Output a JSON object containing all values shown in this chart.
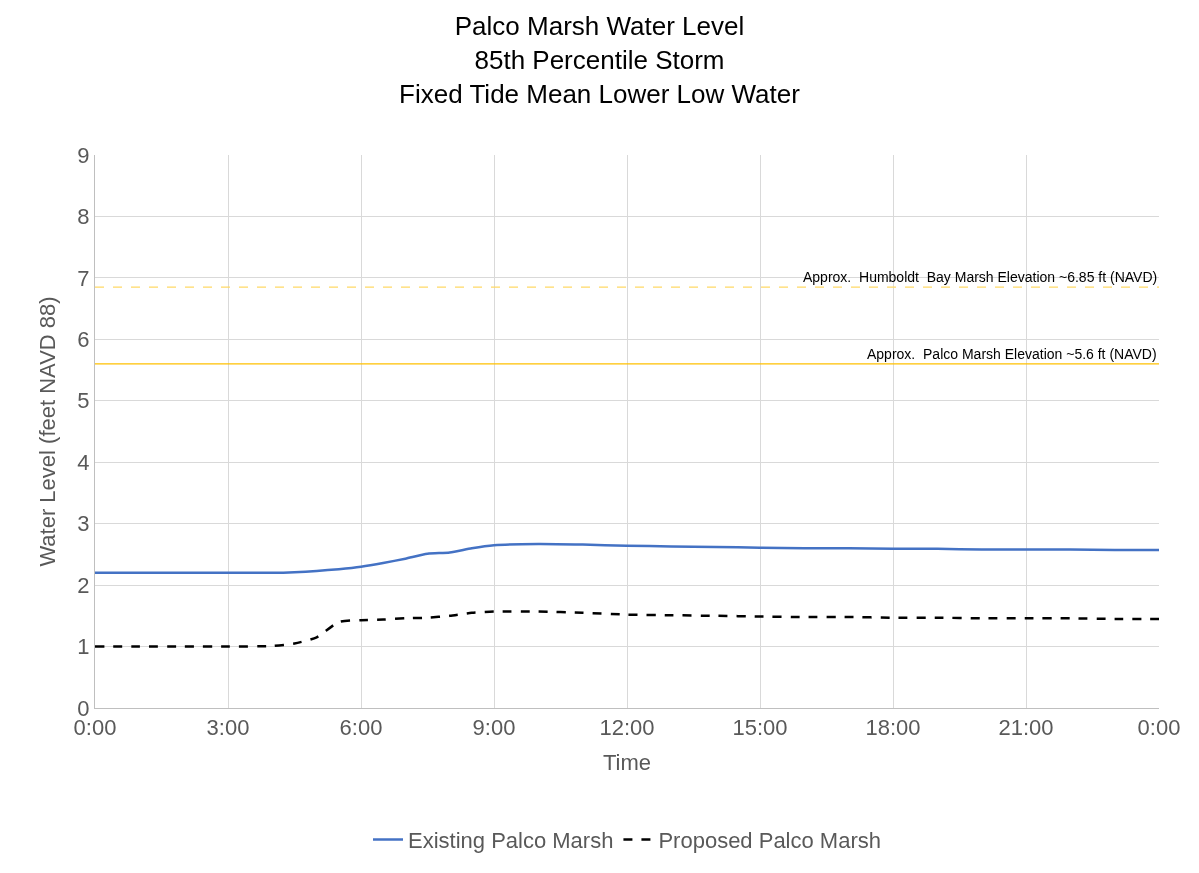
{
  "chart_data": {
    "type": "line",
    "title": "Palco Marsh Water Level\n85th Percentile Storm\nFixed Tide Mean Lower Low Water",
    "xlabel": "Time",
    "ylabel": "Water Level (feet NAVD 88)",
    "x": [
      0,
      1,
      2,
      3,
      4,
      4.5,
      5,
      5.5,
      6,
      6.5,
      7,
      7.5,
      8,
      8.5,
      9,
      10,
      11,
      12,
      13,
      14,
      15,
      16,
      17,
      18,
      19,
      20,
      21,
      22,
      23,
      24
    ],
    "series": [
      {
        "name": "Existing Palco Marsh",
        "color": "#4472c4",
        "line_style": "solid",
        "values": [
          2.2,
          2.2,
          2.2,
          2.2,
          2.2,
          2.21,
          2.23,
          2.26,
          2.3,
          2.36,
          2.43,
          2.51,
          2.53,
          2.6,
          2.65,
          2.67,
          2.66,
          2.64,
          2.63,
          2.62,
          2.61,
          2.6,
          2.6,
          2.59,
          2.59,
          2.58,
          2.58,
          2.58,
          2.57,
          2.57
        ]
      },
      {
        "name": "Proposed Palco Marsh",
        "color": "#000000",
        "line_style": "dashed",
        "values": [
          1.0,
          1.0,
          1.0,
          1.0,
          1.01,
          1.05,
          1.15,
          1.4,
          1.43,
          1.44,
          1.46,
          1.47,
          1.5,
          1.55,
          1.57,
          1.57,
          1.55,
          1.52,
          1.51,
          1.5,
          1.49,
          1.48,
          1.48,
          1.47,
          1.47,
          1.46,
          1.46,
          1.46,
          1.45,
          1.45
        ]
      }
    ],
    "xlim": [
      0,
      24
    ],
    "xticks": [
      {
        "value": 0,
        "label": "0:00"
      },
      {
        "value": 3,
        "label": "3:00"
      },
      {
        "value": 6,
        "label": "6:00"
      },
      {
        "value": 9,
        "label": "9:00"
      },
      {
        "value": 12,
        "label": "12:00"
      },
      {
        "value": 15,
        "label": "15:00"
      },
      {
        "value": 18,
        "label": "18:00"
      },
      {
        "value": 21,
        "label": "21:00"
      },
      {
        "value": 24,
        "label": "0:00"
      }
    ],
    "ylim": [
      0,
      9
    ],
    "yticks": [
      0,
      1,
      2,
      3,
      4,
      5,
      6,
      7,
      8,
      9
    ],
    "ref_lines": [
      {
        "axis": "y",
        "value": 6.85,
        "label": "Approx.  Humboldt  Bay Marsh Elevation ~6.85 ft (NAVD)",
        "color": "#ffd966",
        "line_style": "dashed"
      },
      {
        "axis": "y",
        "value": 5.6,
        "label": "Approx.  Palco Marsh Elevation ~5.6 ft (NAVD)",
        "color": "#ffc000",
        "line_style": "solid"
      }
    ],
    "grid": true,
    "legend": "bottom",
    "marker": "none"
  }
}
